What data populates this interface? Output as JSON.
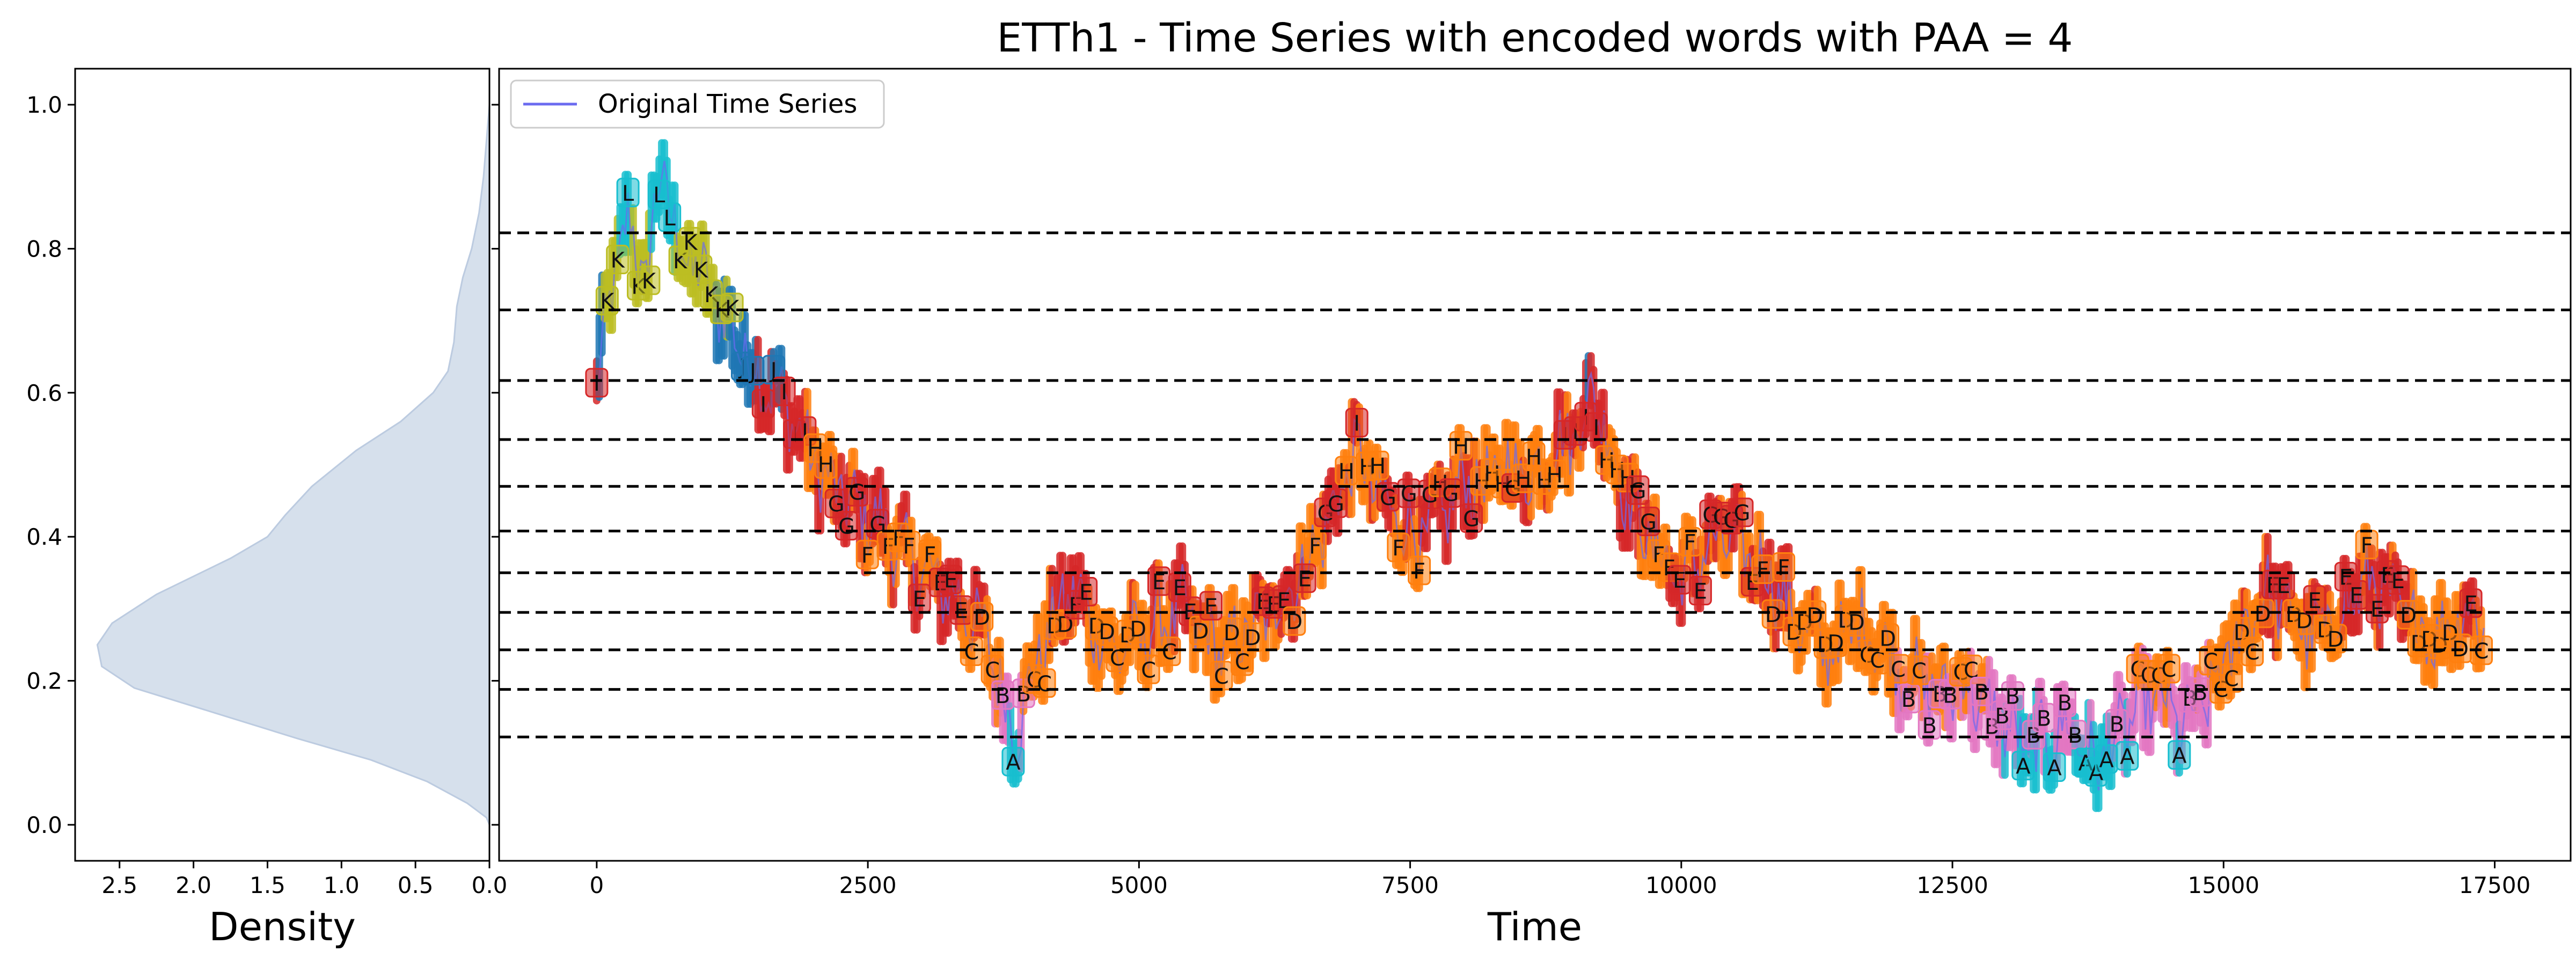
{
  "title": "ETTh1 - Time Series with encoded words with PAA = 4",
  "legend": {
    "label": "Original Time Series",
    "position": "top-left"
  },
  "colors": {
    "series_line": "#6b6bf0",
    "density_fill": "#d6e0ec",
    "density_edge": "#bccbe0",
    "level_lines": "#000000",
    "bands": {
      "A": "#17becf",
      "B": "#e377c2",
      "C": "#ff7f0e",
      "D": "#ff7f0e",
      "E": "#d62728",
      "F": "#ff7f0e",
      "G": "#d62728",
      "H": "#ff7f0e",
      "I": "#d62728",
      "J": "#1f77b4",
      "K": "#bcbd22",
      "L": "#17becf"
    }
  },
  "chart_data": [
    {
      "type": "area",
      "panel": "density",
      "xlabel": "Density",
      "xlim": [
        2.8,
        0.0
      ],
      "ylim": [
        -0.05,
        1.05
      ],
      "xticks": [
        2.5,
        2.0,
        1.5,
        1.0,
        0.5,
        0.0
      ],
      "xtick_labels": [
        "2.5",
        "2.0",
        "1.5",
        "1.0",
        "0.5",
        "0.0"
      ],
      "yticks": [
        0.0,
        0.2,
        0.4,
        0.6,
        0.8,
        1.0
      ],
      "ytick_labels": [
        "0.0",
        "0.2",
        "0.4",
        "0.6",
        "0.8",
        "1.0"
      ],
      "points": [
        [
          0.0,
          0.0
        ],
        [
          0.02,
          0.01
        ],
        [
          0.15,
          0.03
        ],
        [
          0.42,
          0.06
        ],
        [
          0.8,
          0.09
        ],
        [
          1.3,
          0.12
        ],
        [
          1.85,
          0.155
        ],
        [
          2.4,
          0.19
        ],
        [
          2.62,
          0.22
        ],
        [
          2.65,
          0.25
        ],
        [
          2.55,
          0.28
        ],
        [
          2.25,
          0.32
        ],
        [
          1.75,
          0.37
        ],
        [
          1.5,
          0.4
        ],
        [
          1.38,
          0.43
        ],
        [
          1.2,
          0.47
        ],
        [
          0.9,
          0.52
        ],
        [
          0.6,
          0.56
        ],
        [
          0.38,
          0.6
        ],
        [
          0.28,
          0.63
        ],
        [
          0.24,
          0.67
        ],
        [
          0.22,
          0.72
        ],
        [
          0.18,
          0.76
        ],
        [
          0.12,
          0.8
        ],
        [
          0.07,
          0.85
        ],
        [
          0.04,
          0.9
        ],
        [
          0.02,
          0.95
        ],
        [
          0.0,
          1.0
        ]
      ]
    },
    {
      "type": "line",
      "panel": "time_series",
      "xlabel": "Time",
      "xlim": [
        -900,
        18200
      ],
      "ylim": [
        -0.05,
        1.05
      ],
      "xticks": [
        0,
        2500,
        5000,
        7500,
        10000,
        12500,
        15000,
        17500
      ],
      "xtick_labels": [
        "0",
        "2500",
        "5000",
        "7500",
        "10000",
        "12500",
        "15000",
        "17500"
      ],
      "level_lines": [
        0.122,
        0.188,
        0.243,
        0.295,
        0.35,
        0.408,
        0.47,
        0.535,
        0.617,
        0.715,
        0.822
      ],
      "band_letters": [
        "A",
        "B",
        "C",
        "D",
        "E",
        "F",
        "G",
        "H",
        "I",
        "J",
        "K",
        "L"
      ],
      "series": [
        {
          "name": "Original Time Series",
          "x": [
            0,
            150,
            300,
            450,
            600,
            750,
            900,
            1050,
            1200,
            1350,
            1500,
            1650,
            1800,
            1950,
            2100,
            2250,
            2400,
            2600,
            2800,
            3000,
            3200,
            3400,
            3600,
            3750,
            3850,
            4000,
            4200,
            4400,
            4600,
            4800,
            5000,
            5200,
            5400,
            5600,
            5800,
            6000,
            6200,
            6400,
            6600,
            6800,
            7000,
            7200,
            7400,
            7600,
            7800,
            8000,
            8200,
            8400,
            8600,
            8800,
            9000,
            9200,
            9400,
            9600,
            9800,
            10000,
            10200,
            10400,
            10600,
            10800,
            11000,
            11200,
            11400,
            11600,
            11800,
            12000,
            12200,
            12400,
            12600,
            12800,
            13000,
            13200,
            13400,
            13600,
            13800,
            14000,
            14200,
            14400,
            14600,
            14800,
            15000,
            15200,
            15400,
            15600,
            15800,
            16000,
            16200,
            16400,
            16600,
            16800,
            17000,
            17200,
            17400
          ],
          "y": [
            0.6,
            0.76,
            0.84,
            0.75,
            0.92,
            0.8,
            0.78,
            0.74,
            0.7,
            0.66,
            0.62,
            0.6,
            0.57,
            0.52,
            0.48,
            0.46,
            0.44,
            0.42,
            0.38,
            0.35,
            0.33,
            0.3,
            0.26,
            0.18,
            0.12,
            0.2,
            0.28,
            0.33,
            0.27,
            0.24,
            0.26,
            0.28,
            0.3,
            0.26,
            0.24,
            0.27,
            0.29,
            0.33,
            0.38,
            0.44,
            0.52,
            0.46,
            0.42,
            0.4,
            0.43,
            0.48,
            0.47,
            0.5,
            0.48,
            0.52,
            0.54,
            0.6,
            0.5,
            0.42,
            0.38,
            0.34,
            0.38,
            0.4,
            0.38,
            0.35,
            0.3,
            0.26,
            0.24,
            0.28,
            0.26,
            0.22,
            0.2,
            0.18,
            0.2,
            0.16,
            0.14,
            0.1,
            0.12,
            0.14,
            0.08,
            0.12,
            0.16,
            0.18,
            0.14,
            0.16,
            0.22,
            0.28,
            0.32,
            0.3,
            0.26,
            0.28,
            0.32,
            0.34,
            0.3,
            0.28,
            0.26,
            0.3,
            0.28
          ]
        }
      ]
    }
  ]
}
